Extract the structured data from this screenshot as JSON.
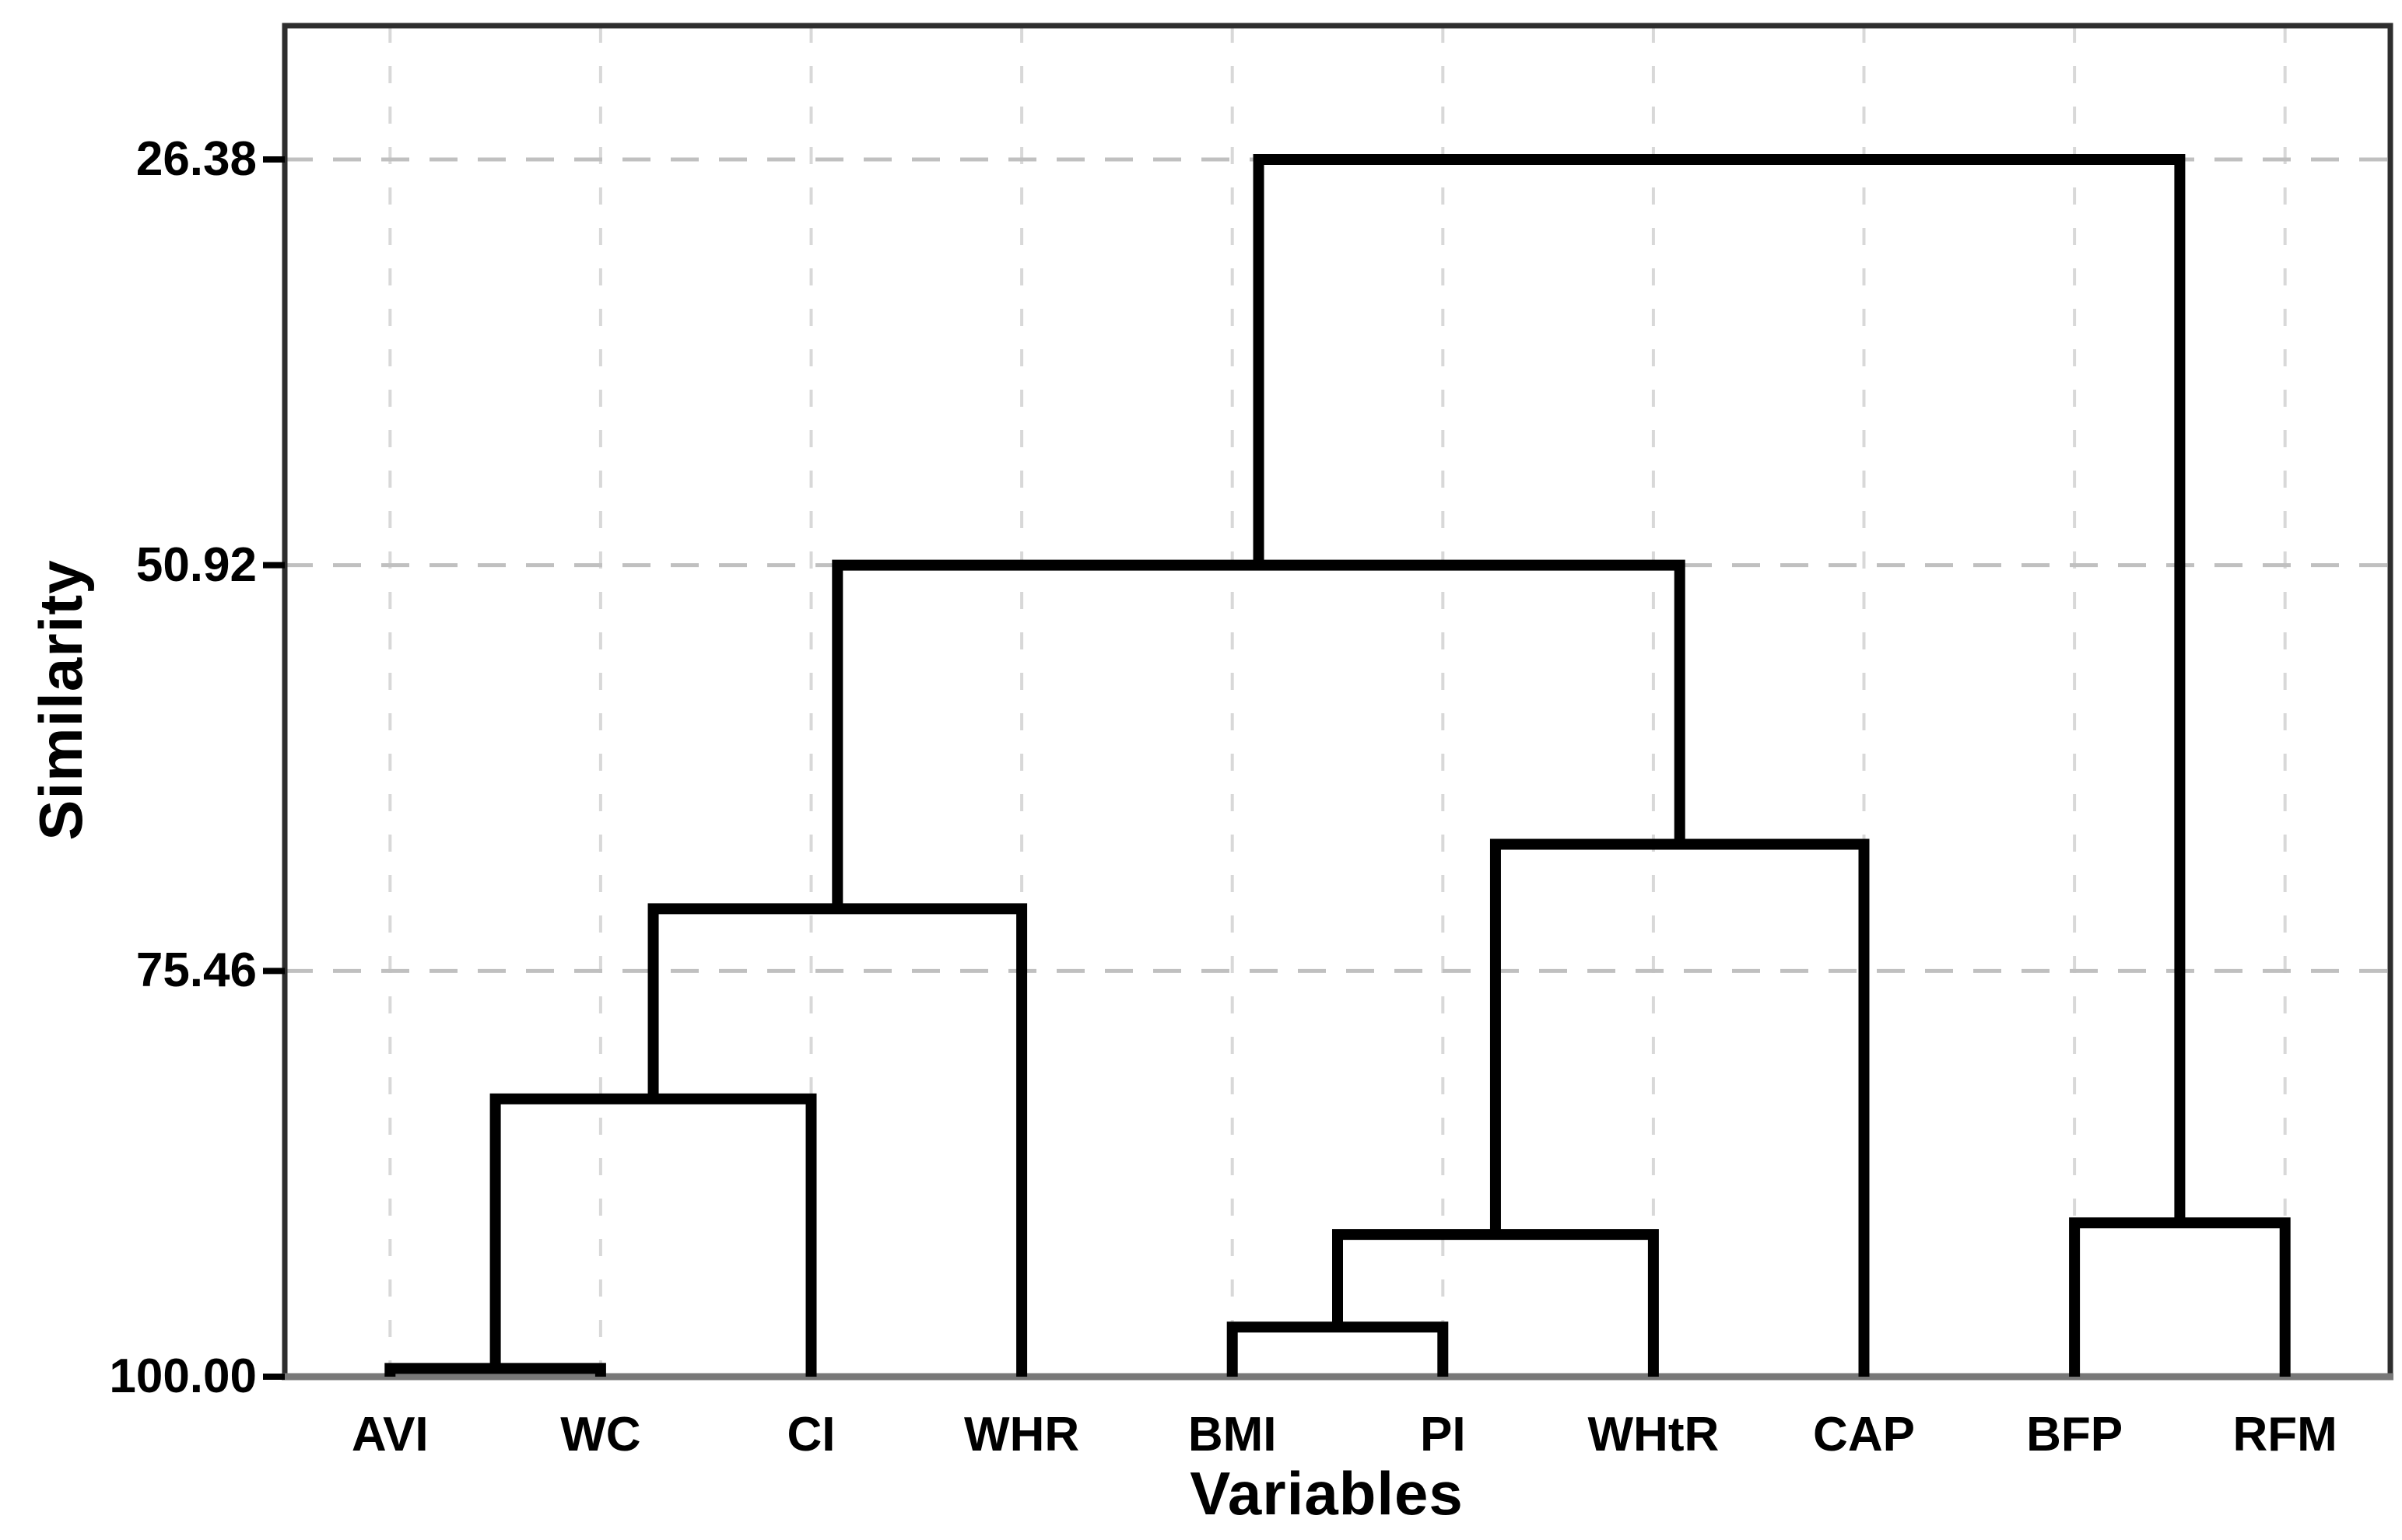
{
  "chart_data": {
    "type": "dendrogram",
    "title": "",
    "xlabel": "Variables",
    "ylabel": "Similarity",
    "orientation": "vertical-bottom-up",
    "y_axis": {
      "label": "Similarity",
      "tick_labels": [
        "26.38",
        "50.92",
        "75.46",
        "100.00"
      ],
      "tick_values": [
        26.38,
        50.92,
        75.46,
        100.0
      ],
      "inverted": true,
      "top_value": 26.38,
      "bottom_value": 100.0
    },
    "x_axis": {
      "label": "Variables"
    },
    "leaves": [
      "AVI",
      "WC",
      "CI",
      "WHR",
      "BMI",
      "PI",
      "WHtR",
      "CAP",
      "BFP",
      "RFM"
    ],
    "merges": [
      {
        "node": 10,
        "children": [
          0,
          1
        ],
        "similarity": 99.5,
        "joins": "AVI + WC"
      },
      {
        "node": 11,
        "children": [
          10,
          2
        ],
        "similarity": 83.2,
        "joins": "(AVI,WC) + CI"
      },
      {
        "node": 12,
        "children": [
          11,
          3
        ],
        "similarity": 71.7,
        "joins": "(AVI,WC,CI) + WHR"
      },
      {
        "node": 13,
        "children": [
          4,
          5
        ],
        "similarity": 97.0,
        "joins": "BMI + PI"
      },
      {
        "node": 14,
        "children": [
          13,
          6
        ],
        "similarity": 91.4,
        "joins": "(BMI,PI) + WHtR"
      },
      {
        "node": 15,
        "children": [
          14,
          7
        ],
        "similarity": 67.8,
        "joins": "(BMI,PI,WHtR) + CAP"
      },
      {
        "node": 16,
        "children": [
          8,
          9
        ],
        "similarity": 90.7,
        "joins": "BFP + RFM"
      },
      {
        "node": 17,
        "children": [
          12,
          15
        ],
        "similarity": 50.92,
        "joins": "(AVI..WHR) + (BMI..CAP)"
      },
      {
        "node": 18,
        "children": [
          17,
          16
        ],
        "similarity": 26.38,
        "joins": "all clusters + (BFP,RFM)"
      }
    ],
    "grid": {
      "horizontal": true,
      "vertical": true,
      "style": "dashed",
      "legend": "none"
    },
    "colors": {
      "line": "#000000",
      "frame": "#2e2e2e",
      "baseline": "#787878",
      "grid_h": "#c0c0c0",
      "grid_v": "#d8d8d8",
      "tick": "#000000",
      "text": "#000000",
      "background": "#ffffff"
    }
  }
}
